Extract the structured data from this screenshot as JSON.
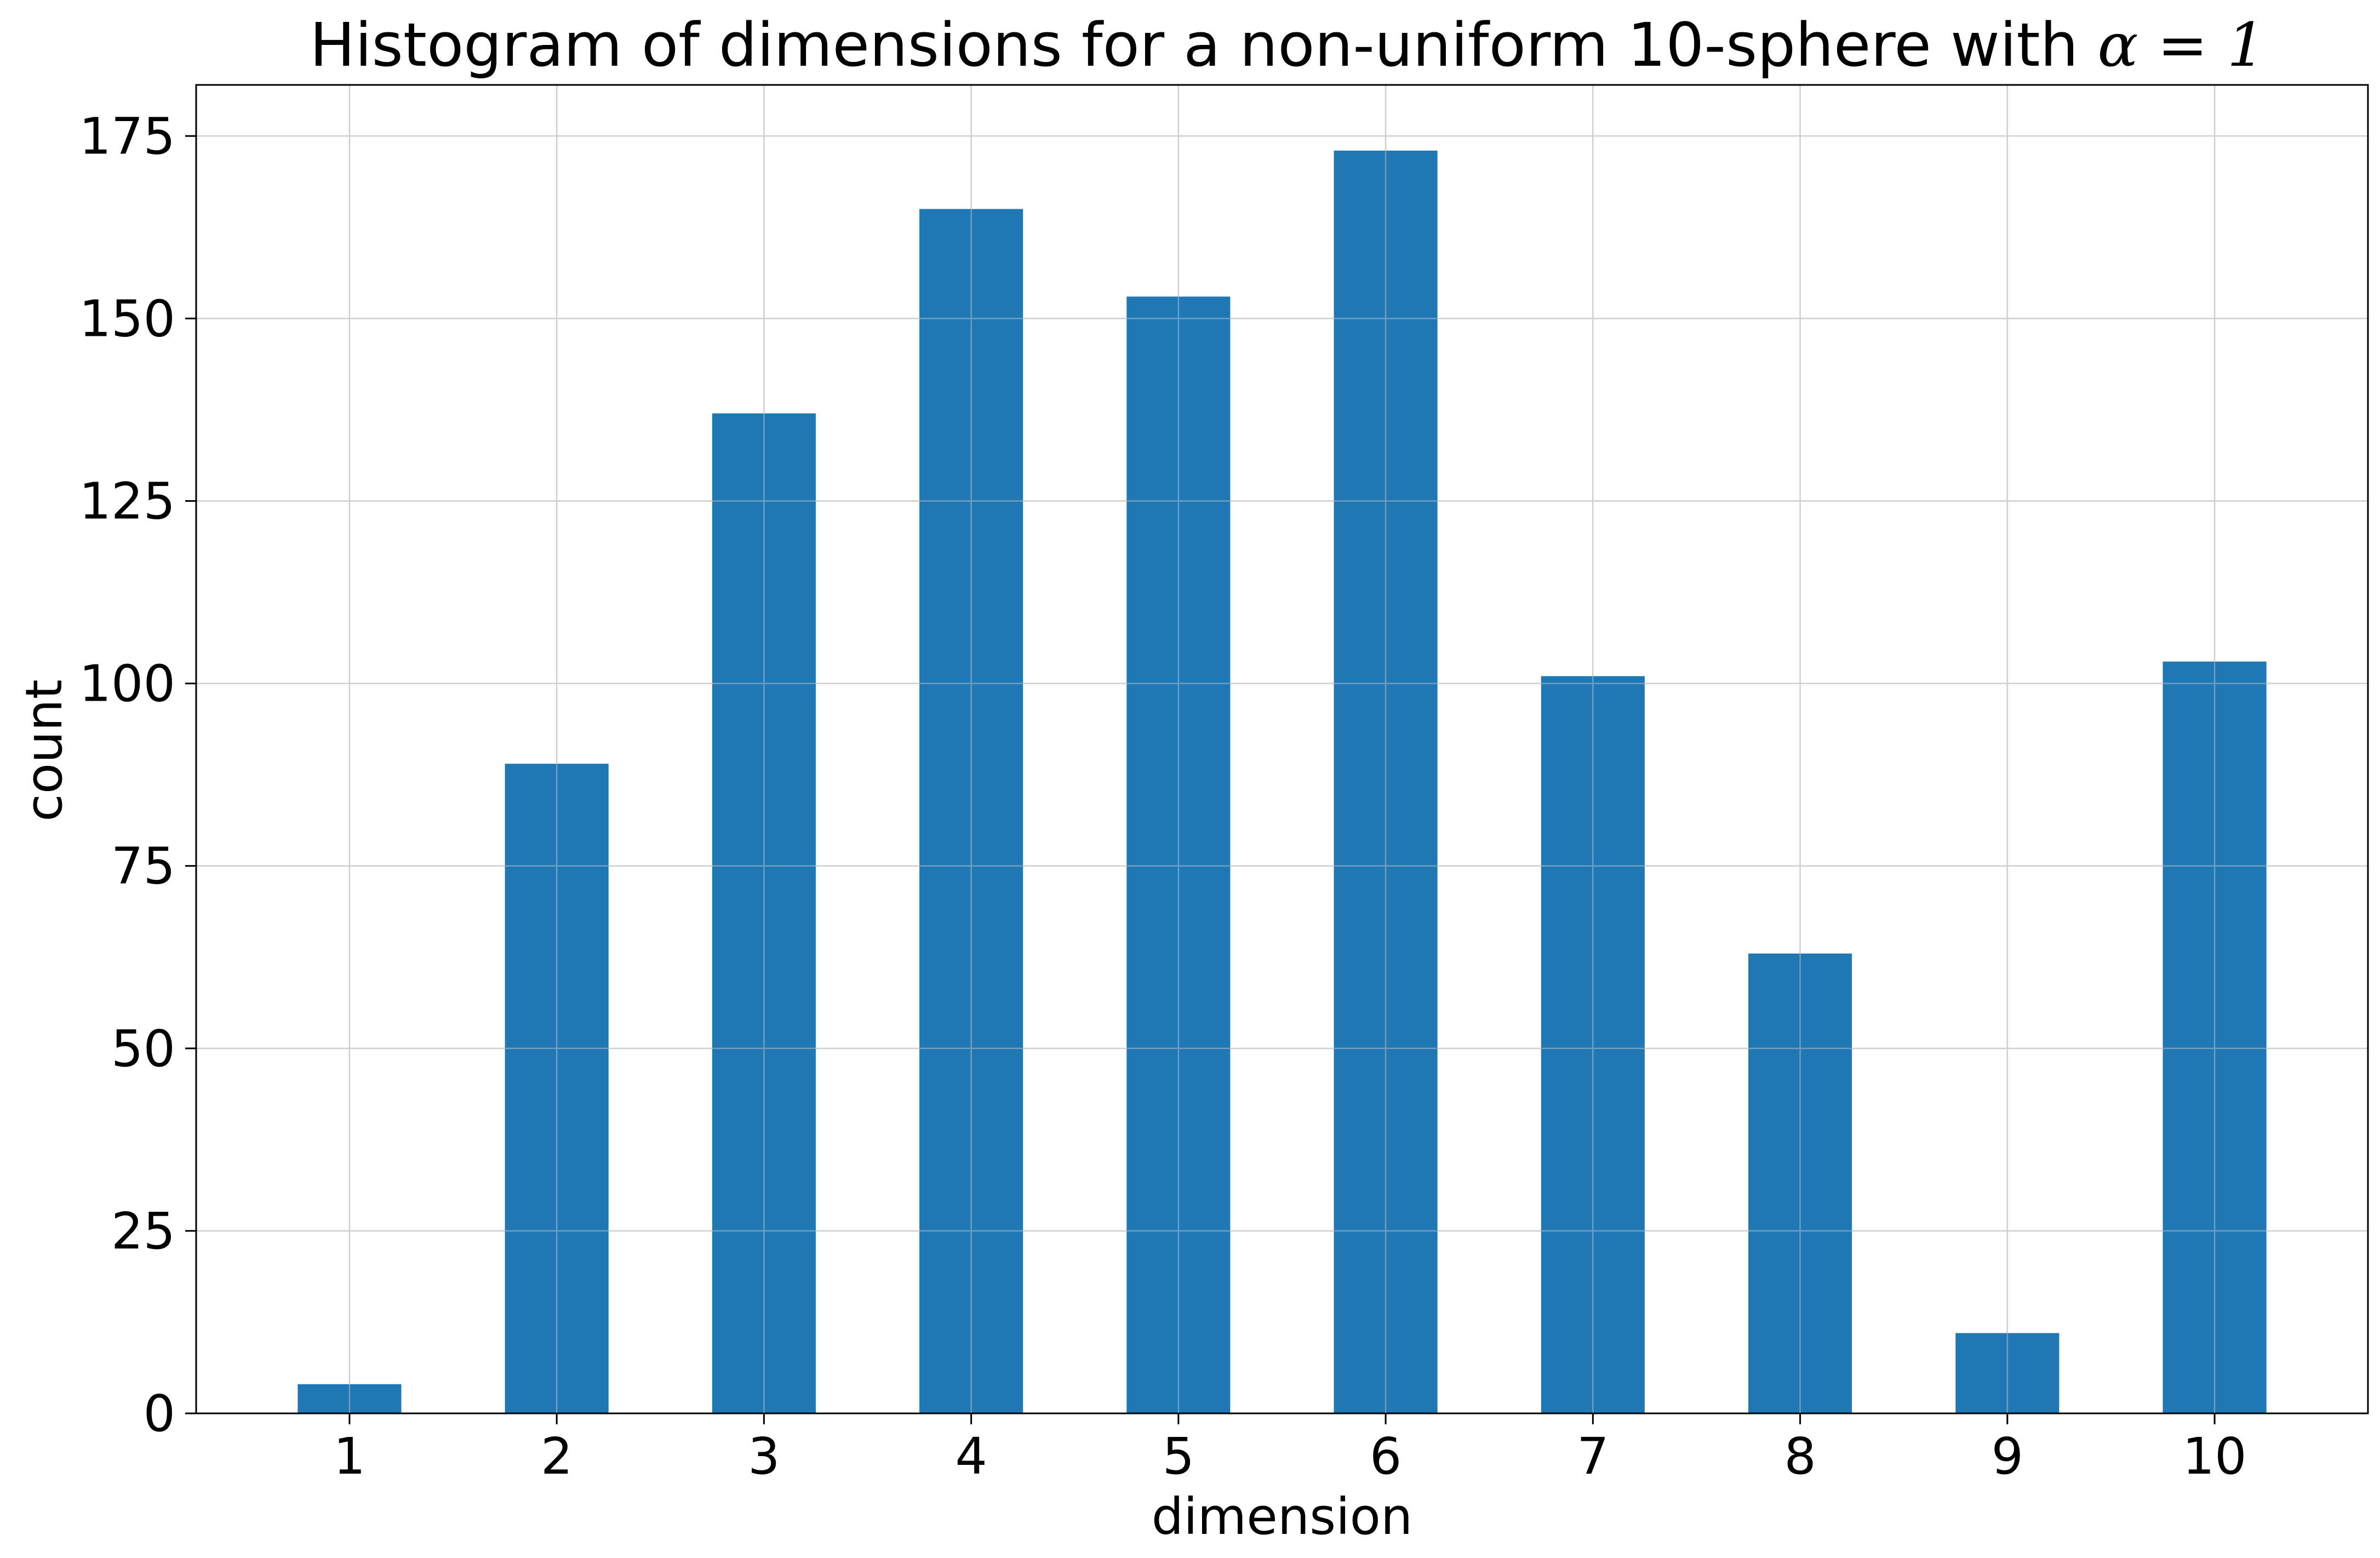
{
  "chart_data": {
    "type": "bar",
    "title": "Histogram of dimensions for a non-uniform 10-sphere with ",
    "title_math": "α = 1",
    "xlabel": "dimension",
    "ylabel": "count",
    "categories": [
      "1",
      "2",
      "3",
      "4",
      "5",
      "6",
      "7",
      "8",
      "9",
      "10"
    ],
    "values": [
      4,
      89,
      137,
      165,
      153,
      173,
      101,
      63,
      11,
      103
    ],
    "ylim": [
      0,
      182
    ],
    "yticks": [
      0,
      25,
      50,
      75,
      100,
      125,
      150,
      175
    ],
    "grid": true,
    "bar_color": "#1f77b4",
    "grid_color": "#d0d0d0"
  }
}
